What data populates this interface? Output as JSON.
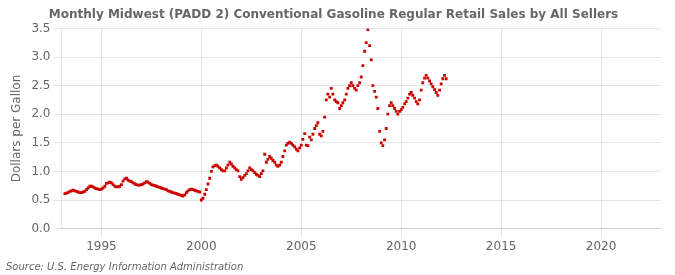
{
  "chart_data": {
    "type": "scatter",
    "title": "Monthly Midwest (PADD 2) Conventional Gasoline Regular Retail Sales by All Sellers",
    "y_label": "Dollars per Gallon",
    "annotations": [
      "Source: U.S. Energy Information Administration"
    ],
    "color": "#cc0000",
    "marker": "square",
    "grid": true,
    "xlim": [
      1993.0,
      2023.0
    ],
    "ylim": [
      0.0,
      3.5
    ],
    "xticks": [
      1995,
      2000,
      2005,
      2010,
      2015,
      2020
    ],
    "yticks": [
      {
        "value": 0.0,
        "label": "0.0"
      },
      0.5,
      {
        "value": 1.0,
        "label": "1.0"
      },
      1.5,
      {
        "value": 2.0,
        "label": "2.0"
      },
      2.5,
      {
        "value": 3.0,
        "label": "3.0"
      },
      3.5
    ],
    "x": [
      1993.17,
      1993.25,
      1993.33,
      1993.42,
      1993.5,
      1993.58,
      1993.67,
      1993.75,
      1993.83,
      1993.92,
      1994.0,
      1994.08,
      1994.17,
      1994.25,
      1994.33,
      1994.42,
      1994.5,
      1994.58,
      1994.67,
      1994.75,
      1994.83,
      1994.92,
      1995.0,
      1995.08,
      1995.17,
      1995.25,
      1995.33,
      1995.42,
      1995.5,
      1995.58,
      1995.67,
      1995.75,
      1995.83,
      1995.92,
      1996.0,
      1996.08,
      1996.17,
      1996.25,
      1996.33,
      1996.42,
      1996.5,
      1996.58,
      1996.67,
      1996.75,
      1996.83,
      1996.92,
      1997.0,
      1997.08,
      1997.17,
      1997.25,
      1997.33,
      1997.42,
      1997.5,
      1997.58,
      1997.67,
      1997.75,
      1997.83,
      1997.92,
      1998.0,
      1998.08,
      1998.17,
      1998.25,
      1998.33,
      1998.42,
      1998.5,
      1998.58,
      1998.67,
      1998.75,
      1998.83,
      1998.92,
      1999.0,
      1999.08,
      1999.17,
      1999.25,
      1999.33,
      1999.42,
      1999.5,
      1999.58,
      1999.67,
      1999.75,
      1999.83,
      1999.92,
      2000.0,
      2000.08,
      2000.17,
      2000.25,
      2000.33,
      2000.42,
      2000.5,
      2000.58,
      2000.67,
      2000.75,
      2000.83,
      2000.92,
      2001.0,
      2001.08,
      2001.17,
      2001.25,
      2001.33,
      2001.42,
      2001.5,
      2001.58,
      2001.67,
      2001.75,
      2001.83,
      2001.92,
      2002.0,
      2002.08,
      2002.17,
      2002.25,
      2002.33,
      2002.42,
      2002.5,
      2002.58,
      2002.67,
      2002.75,
      2002.83,
      2002.92,
      2003.0,
      2003.08,
      2003.17,
      2003.25,
      2003.33,
      2003.42,
      2003.5,
      2003.58,
      2003.67,
      2003.75,
      2003.83,
      2003.92,
      2004.0,
      2004.08,
      2004.17,
      2004.25,
      2004.33,
      2004.42,
      2004.5,
      2004.58,
      2004.67,
      2004.75,
      2004.83,
      2004.92,
      2005.0,
      2005.08,
      2005.17,
      2005.25,
      2005.33,
      2005.42,
      2005.5,
      2005.58,
      2005.67,
      2005.75,
      2005.83,
      2005.92,
      2006.0,
      2006.08,
      2006.17,
      2006.25,
      2006.33,
      2006.42,
      2006.5,
      2006.58,
      2006.67,
      2006.75,
      2006.83,
      2006.92,
      2007.0,
      2007.08,
      2007.17,
      2007.25,
      2007.33,
      2007.42,
      2007.5,
      2007.58,
      2007.67,
      2007.75,
      2007.83,
      2007.92,
      2008.0,
      2008.08,
      2008.17,
      2008.25,
      2008.33,
      2008.42,
      2008.5,
      2008.58,
      2008.67,
      2008.75,
      2008.83,
      2008.92,
      2009.0,
      2009.08,
      2009.17,
      2009.25,
      2009.33,
      2009.42,
      2009.5,
      2009.58,
      2009.67,
      2009.75,
      2009.83,
      2009.92,
      2010.0,
      2010.08,
      2010.17,
      2010.25,
      2010.33,
      2010.42,
      2010.5,
      2010.58,
      2010.67,
      2010.75,
      2010.83,
      2010.92,
      2011.0,
      2011.08,
      2011.17,
      2011.25,
      2011.33,
      2011.42,
      2011.5,
      2011.58,
      2011.67,
      2011.75,
      2011.83,
      2011.92,
      2012.0,
      2012.08,
      2012.17,
      2012.25
    ],
    "values": [
      0.61,
      0.62,
      0.63,
      0.65,
      0.66,
      0.67,
      0.66,
      0.65,
      0.64,
      0.63,
      0.63,
      0.64,
      0.65,
      0.68,
      0.71,
      0.74,
      0.74,
      0.73,
      0.71,
      0.7,
      0.69,
      0.68,
      0.69,
      0.71,
      0.74,
      0.79,
      0.8,
      0.81,
      0.8,
      0.77,
      0.74,
      0.73,
      0.73,
      0.74,
      0.77,
      0.83,
      0.87,
      0.88,
      0.85,
      0.83,
      0.82,
      0.8,
      0.78,
      0.77,
      0.76,
      0.76,
      0.77,
      0.78,
      0.8,
      0.82,
      0.81,
      0.79,
      0.77,
      0.76,
      0.75,
      0.74,
      0.73,
      0.72,
      0.71,
      0.7,
      0.69,
      0.68,
      0.66,
      0.65,
      0.64,
      0.63,
      0.62,
      0.61,
      0.6,
      0.59,
      0.58,
      0.57,
      0.59,
      0.63,
      0.66,
      0.68,
      0.69,
      0.68,
      0.67,
      0.66,
      0.65,
      0.64,
      0.5,
      0.53,
      0.6,
      0.68,
      0.78,
      0.88,
      1.0,
      1.08,
      1.1,
      1.11,
      1.09,
      1.06,
      1.03,
      1.01,
      1.01,
      1.06,
      1.11,
      1.16,
      1.13,
      1.09,
      1.06,
      1.03,
      1.01,
      0.91,
      0.86,
      0.89,
      0.93,
      0.96,
      1.01,
      1.06,
      1.03,
      1.01,
      0.98,
      0.95,
      0.93,
      0.91,
      0.96,
      1.01,
      1.3,
      1.16,
      1.21,
      1.26,
      1.23,
      1.19,
      1.16,
      1.11,
      1.09,
      1.11,
      1.16,
      1.26,
      1.36,
      1.46,
      1.49,
      1.51,
      1.49,
      1.46,
      1.43,
      1.39,
      1.36,
      1.41,
      1.46,
      1.56,
      1.66,
      1.46,
      1.45,
      1.6,
      1.55,
      1.65,
      1.75,
      1.8,
      1.85,
      1.65,
      1.62,
      1.7,
      1.95,
      2.25,
      2.35,
      2.3,
      2.45,
      2.35,
      2.25,
      2.22,
      2.2,
      2.1,
      2.15,
      2.2,
      2.25,
      2.35,
      2.45,
      2.5,
      2.55,
      2.5,
      2.45,
      2.42,
      2.5,
      2.55,
      2.65,
      2.85,
      3.1,
      3.25,
      3.48,
      3.2,
      2.95,
      2.5,
      2.4,
      2.3,
      2.1,
      1.7,
      1.5,
      1.45,
      1.55,
      1.75,
      2.0,
      2.15,
      2.2,
      2.15,
      2.1,
      2.05,
      2.0,
      2.05,
      2.08,
      2.12,
      2.18,
      2.22,
      2.28,
      2.35,
      2.38,
      2.33,
      2.28,
      2.22,
      2.18,
      2.25,
      2.42,
      2.55,
      2.63,
      2.68,
      2.63,
      2.58,
      2.53,
      2.48,
      2.43,
      2.38,
      2.33,
      2.42,
      2.53,
      2.62,
      2.68,
      2.62
    ]
  }
}
